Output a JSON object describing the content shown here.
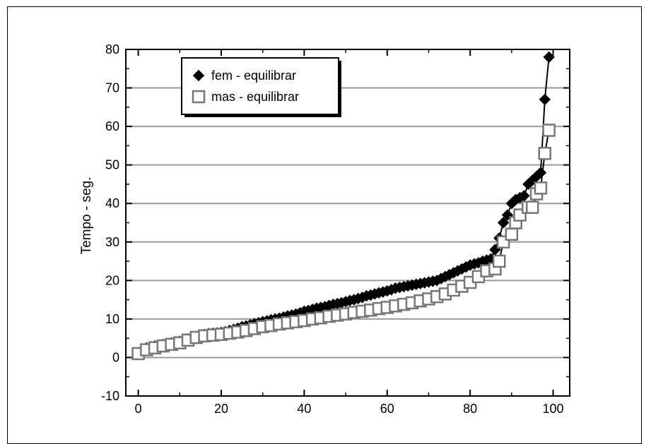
{
  "chart_data": {
    "type": "scatter",
    "title": "",
    "xlabel": "",
    "ylabel": "Tempo - seg.",
    "xlim": [
      -3,
      104
    ],
    "ylim": [
      -10,
      80
    ],
    "xticks": [
      0,
      20,
      40,
      60,
      80,
      100
    ],
    "yticks": [
      -10,
      0,
      10,
      20,
      30,
      40,
      50,
      60,
      70,
      80
    ],
    "grid": "horizontal",
    "legend_position": "top-left",
    "series": [
      {
        "name": "fem -  equilibrar",
        "marker": "filled-diamond",
        "color": "#000000",
        "line": true,
        "x": [
          1,
          2,
          3,
          4,
          5,
          6,
          7,
          8,
          9,
          10,
          11,
          12,
          13,
          14,
          15,
          16,
          17,
          18,
          19,
          20,
          21,
          22,
          23,
          24,
          25,
          26,
          27,
          28,
          29,
          30,
          31,
          32,
          33,
          34,
          35,
          36,
          37,
          38,
          39,
          40,
          41,
          42,
          43,
          44,
          45,
          46,
          47,
          48,
          49,
          50,
          51,
          52,
          53,
          54,
          55,
          56,
          57,
          58,
          59,
          60,
          61,
          62,
          63,
          64,
          65,
          66,
          67,
          68,
          69,
          70,
          71,
          72,
          73,
          74,
          75,
          76,
          77,
          78,
          79,
          80,
          81,
          82,
          83,
          84,
          85,
          86,
          87,
          88,
          89,
          90,
          91,
          92,
          93,
          94,
          95,
          96,
          97,
          98,
          99
        ],
        "y": [
          2,
          2.5,
          2.8,
          3,
          3.2,
          3.4,
          3.6,
          3.8,
          4,
          4.2,
          4.4,
          4.8,
          5,
          5.5,
          5.8,
          6,
          6.2,
          6.3,
          6.4,
          6.5,
          6.7,
          7,
          7.3,
          7.6,
          8,
          8.2,
          8.5,
          8.8,
          9,
          9.3,
          9.5,
          9.8,
          10,
          10.2,
          10.5,
          10.8,
          11,
          11.3,
          11.6,
          12,
          12.2,
          12.5,
          12.8,
          13,
          13.2,
          13.5,
          13.8,
          14,
          14.2,
          14.5,
          14.8,
          15,
          15.3,
          15.6,
          16,
          16.2,
          16.5,
          16.8,
          17,
          17.3,
          17.6,
          18,
          18.2,
          18.4,
          18.6,
          18.8,
          19,
          19.2,
          19.4,
          19.6,
          19.8,
          20,
          20.5,
          21,
          21.5,
          22,
          22.5,
          23,
          23.5,
          24,
          24.3,
          24.6,
          25,
          25.3,
          25.6,
          28,
          31,
          35,
          37,
          40,
          41,
          41.5,
          42,
          45,
          46,
          47,
          48,
          67,
          78
        ]
      },
      {
        "name": "mas -  equilibrar",
        "marker": "open-square",
        "color": "#000000",
        "line": true,
        "x": [
          0,
          2,
          4,
          6,
          8,
          10,
          12,
          14,
          16,
          18,
          20,
          22,
          24,
          26,
          28,
          30,
          32,
          34,
          36,
          38,
          40,
          42,
          44,
          46,
          48,
          50,
          52,
          54,
          56,
          58,
          60,
          62,
          64,
          66,
          68,
          70,
          72,
          74,
          76,
          78,
          80,
          82,
          84,
          86,
          87,
          88,
          90,
          91,
          92,
          94,
          95,
          96,
          97,
          98,
          99
        ],
        "y": [
          1,
          2,
          2.5,
          3,
          3.4,
          3.8,
          4.5,
          5.2,
          5.6,
          5.8,
          6,
          6.3,
          6.6,
          7,
          7.5,
          8,
          8.3,
          8.7,
          9,
          9.3,
          9.6,
          10,
          10.3,
          10.7,
          11,
          11.3,
          11.7,
          12,
          12.3,
          12.7,
          13,
          13.4,
          13.8,
          14.2,
          14.7,
          15.2,
          15.8,
          16.5,
          17.5,
          18.5,
          19.5,
          21,
          22.5,
          23,
          25,
          30,
          32,
          35,
          37,
          39,
          39,
          42.5,
          44,
          53,
          59
        ]
      }
    ]
  }
}
